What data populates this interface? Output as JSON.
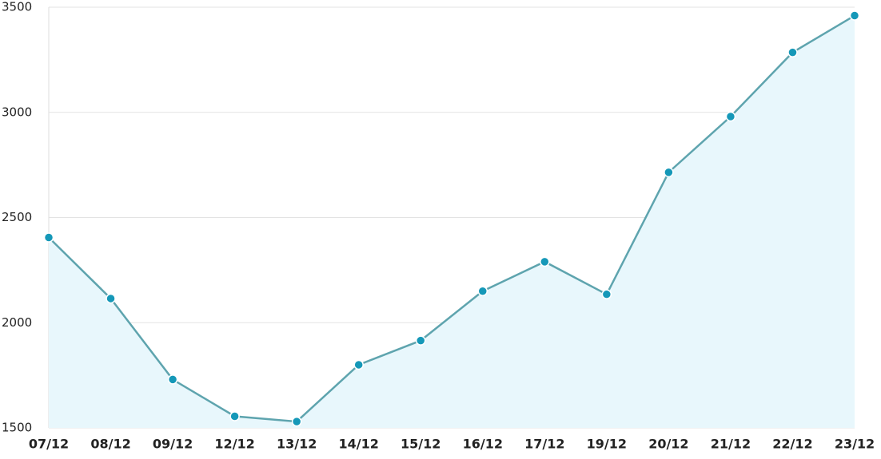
{
  "chart_data": {
    "type": "area",
    "categories": [
      "07/12",
      "08/12",
      "09/12",
      "12/12",
      "13/12",
      "14/12",
      "15/12",
      "16/12",
      "17/12",
      "19/12",
      "20/12",
      "21/12",
      "22/12",
      "23/12"
    ],
    "values": [
      2405,
      2115,
      1730,
      1555,
      1530,
      1800,
      1915,
      2150,
      2290,
      2135,
      2715,
      2980,
      3285,
      3460
    ],
    "color": "#5ea4ae",
    "marker_color": "#1598b8",
    "fill_color": "#e8f7fc",
    "ylim": [
      1500,
      3500
    ],
    "yticks": [
      1500,
      2000,
      2500,
      3000,
      3500
    ],
    "grid": true
  }
}
